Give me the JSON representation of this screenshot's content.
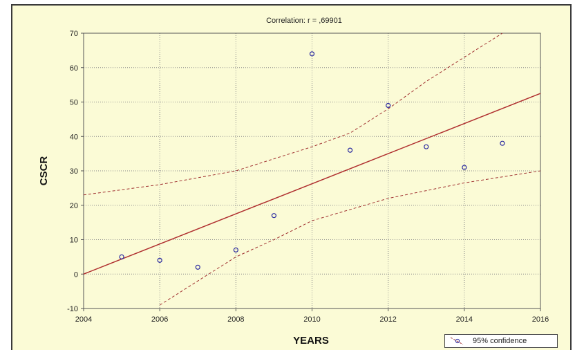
{
  "chart_data": {
    "type": "scatter",
    "title": "Correlation: r = ,69901",
    "xlabel": "YEARS",
    "ylabel": "CSCR",
    "xlim": [
      2004,
      2016
    ],
    "ylim": [
      -10,
      70
    ],
    "xticks": [
      2004,
      2006,
      2008,
      2010,
      2012,
      2014,
      2016
    ],
    "yticks": [
      -10,
      0,
      10,
      20,
      30,
      40,
      50,
      60,
      70
    ],
    "grid": true,
    "legend_position": "bottom-right",
    "legend_label": "95% confidence",
    "points": [
      {
        "x": 2005,
        "y": 5
      },
      {
        "x": 2006,
        "y": 4
      },
      {
        "x": 2007,
        "y": 2
      },
      {
        "x": 2008,
        "y": 7
      },
      {
        "x": 2009,
        "y": 17
      },
      {
        "x": 2010,
        "y": 64
      },
      {
        "x": 2011,
        "y": 36
      },
      {
        "x": 2012,
        "y": 49
      },
      {
        "x": 2013,
        "y": 37
      },
      {
        "x": 2014,
        "y": 31
      },
      {
        "x": 2015,
        "y": 38
      }
    ],
    "regression_line": [
      {
        "x": 2004,
        "y": 0
      },
      {
        "x": 2016,
        "y": 52.5
      }
    ],
    "confidence_upper": [
      {
        "x": 2004,
        "y": 23
      },
      {
        "x": 2006,
        "y": 26
      },
      {
        "x": 2008,
        "y": 30
      },
      {
        "x": 2010,
        "y": 37
      },
      {
        "x": 2011,
        "y": 41
      },
      {
        "x": 2012,
        "y": 48
      },
      {
        "x": 2013,
        "y": 56
      },
      {
        "x": 2014,
        "y": 63
      },
      {
        "x": 2015,
        "y": 70
      }
    ],
    "confidence_lower": [
      {
        "x": 2006,
        "y": -9
      },
      {
        "x": 2008,
        "y": 5
      },
      {
        "x": 2009,
        "y": 10
      },
      {
        "x": 2010,
        "y": 15.5
      },
      {
        "x": 2012,
        "y": 22
      },
      {
        "x": 2014,
        "y": 26.5
      },
      {
        "x": 2016,
        "y": 30
      }
    ],
    "colors": {
      "points": "#2a2aa0",
      "regression": "#b03030",
      "confidence": "#a03030",
      "background": "#fbfbd6",
      "grid": "#8a8a8a"
    }
  }
}
